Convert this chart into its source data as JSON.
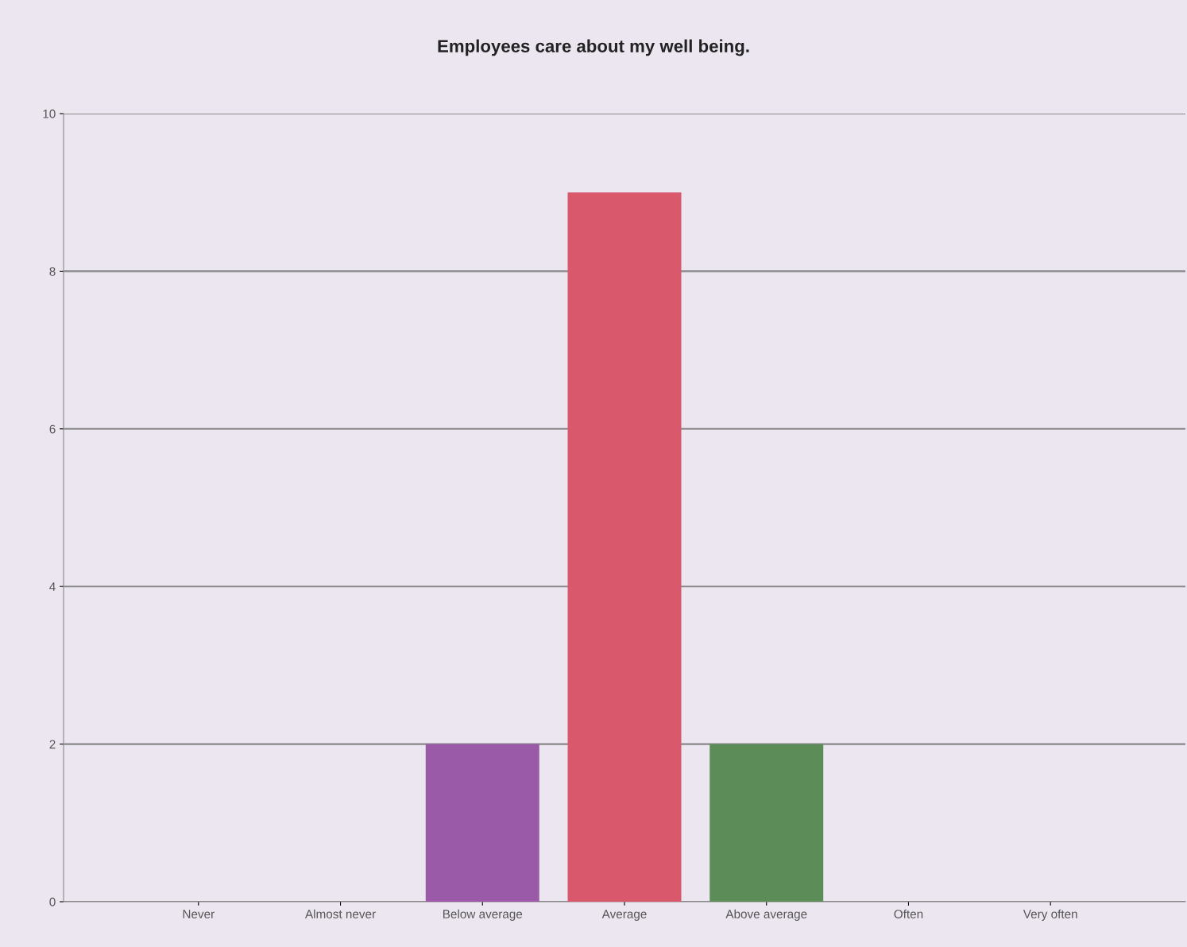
{
  "chart_data": {
    "type": "bar",
    "title": "Employees care about my well being.",
    "categories": [
      "Never",
      "Almost never",
      "Below average",
      "Average",
      "Above average",
      "Often",
      "Very often"
    ],
    "values": [
      0,
      0,
      2,
      9,
      2,
      0,
      0
    ],
    "colors": [
      "#9b5aa8",
      "#9b5aa8",
      "#9b5aa8",
      "#d9586c",
      "#5c8c58",
      "#5c8c58",
      "#5c8c58"
    ],
    "ylim": [
      0,
      10
    ],
    "yticks": [
      0,
      2,
      4,
      6,
      8,
      10
    ],
    "grid": "y",
    "legend": false
  }
}
